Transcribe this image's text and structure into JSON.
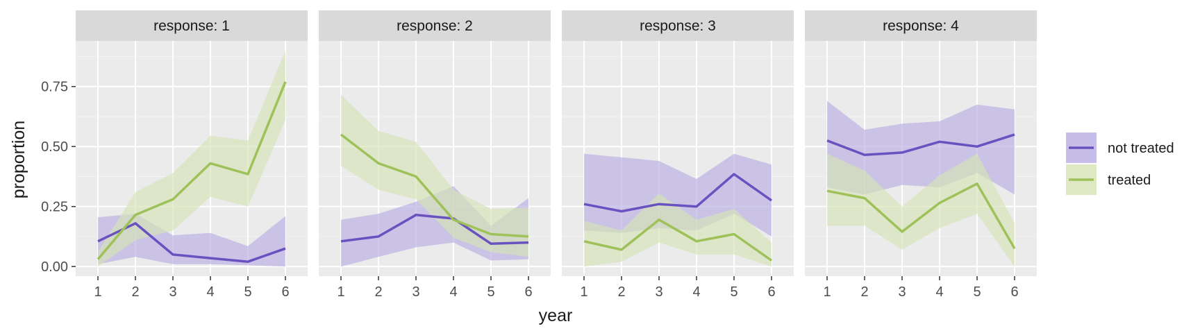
{
  "chart_data": {
    "type": "line",
    "facet_label_prefix": "response: ",
    "xlabel": "year",
    "ylabel": "proportion",
    "x": [
      1,
      2,
      3,
      4,
      5,
      6
    ],
    "ylim": [
      -0.04,
      0.94
    ],
    "yticks": [
      0.0,
      0.25,
      0.5,
      0.75
    ],
    "ytick_labels": [
      "0.00",
      "0.25",
      "0.50",
      "0.75"
    ],
    "legend_position": "right",
    "series_styles": [
      {
        "name": "not treated",
        "color": "#6a51c0",
        "band_color": "#b8aee3"
      },
      {
        "name": "treated",
        "color": "#9ec15a",
        "band_color": "#d6e4b5"
      }
    ],
    "panels": [
      {
        "facet": "1",
        "series": [
          {
            "name": "not treated",
            "values": [
              0.105,
              0.18,
              0.05,
              0.035,
              0.02,
              0.075
            ],
            "lower": [
              0.01,
              0.04,
              0.01,
              0.01,
              0.005,
              0.0
            ],
            "upper": [
              0.205,
              0.22,
              0.13,
              0.14,
              0.085,
              0.21
            ]
          },
          {
            "name": "treated",
            "values": [
              0.03,
              0.215,
              0.28,
              0.43,
              0.385,
              0.77
            ],
            "lower": [
              0.0,
              0.11,
              0.15,
              0.29,
              0.25,
              0.61
            ],
            "upper": [
              0.06,
              0.31,
              0.39,
              0.545,
              0.525,
              0.9
            ]
          }
        ]
      },
      {
        "facet": "2",
        "series": [
          {
            "name": "not treated",
            "values": [
              0.105,
              0.125,
              0.215,
              0.2,
              0.095,
              0.1
            ],
            "lower": [
              0.0,
              0.04,
              0.08,
              0.1,
              0.025,
              0.03
            ],
            "upper": [
              0.195,
              0.22,
              0.27,
              0.335,
              0.17,
              0.285
            ]
          },
          {
            "name": "treated",
            "values": [
              0.55,
              0.43,
              0.375,
              0.195,
              0.135,
              0.125
            ],
            "lower": [
              0.42,
              0.32,
              0.28,
              0.12,
              0.06,
              0.04
            ],
            "upper": [
              0.715,
              0.565,
              0.52,
              0.32,
              0.24,
              0.245
            ]
          }
        ]
      },
      {
        "facet": "3",
        "series": [
          {
            "name": "not treated",
            "values": [
              0.26,
              0.23,
              0.26,
              0.25,
              0.385,
              0.275
            ],
            "lower": [
              0.15,
              0.14,
              0.16,
              0.15,
              0.22,
              0.125
            ],
            "upper": [
              0.47,
              0.455,
              0.44,
              0.365,
              0.47,
              0.425
            ]
          },
          {
            "name": "treated",
            "values": [
              0.105,
              0.07,
              0.195,
              0.105,
              0.135,
              0.025
            ],
            "lower": [
              0.0,
              0.02,
              0.1,
              0.05,
              0.05,
              0.0
            ],
            "upper": [
              0.19,
              0.15,
              0.305,
              0.195,
              0.24,
              0.1
            ]
          }
        ]
      },
      {
        "facet": "4",
        "series": [
          {
            "name": "not treated",
            "values": [
              0.525,
              0.465,
              0.475,
              0.52,
              0.5,
              0.55
            ],
            "lower": [
              0.33,
              0.3,
              0.34,
              0.33,
              0.39,
              0.3
            ],
            "upper": [
              0.69,
              0.57,
              0.595,
              0.605,
              0.675,
              0.655
            ]
          },
          {
            "name": "treated",
            "values": [
              0.315,
              0.285,
              0.145,
              0.265,
              0.345,
              0.075
            ],
            "lower": [
              0.17,
              0.17,
              0.07,
              0.16,
              0.22,
              0.0
            ],
            "upper": [
              0.47,
              0.4,
              0.25,
              0.38,
              0.47,
              0.18
            ]
          }
        ]
      }
    ]
  }
}
